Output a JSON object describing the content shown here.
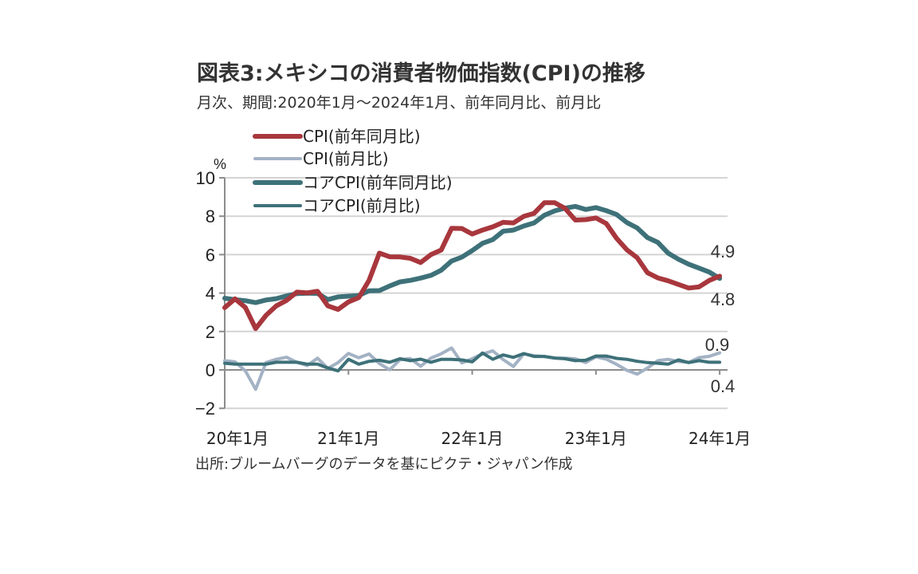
{
  "header": {
    "title": "図表3:メキシコの消費者物価指数(CPI)の推移",
    "subtitle": "月次、期間:2020年1月～2024年1月、前年同月比、前月比"
  },
  "footer": {
    "source": "出所:ブルームバーグのデータを基にピクテ・ジャパン作成"
  },
  "chart_data": {
    "type": "line",
    "title": "図表3:メキシコの消費者物価指数(CPI)の推移",
    "subtitle": "月次、期間:2020年1月～2024年1月、前年同月比、前月比",
    "ylabel": "%",
    "xlabel": "",
    "ylim": [
      -2,
      10
    ],
    "yticks": [
      10,
      8,
      6,
      4,
      2,
      0,
      -2
    ],
    "xtick_labels": [
      "20年1月",
      "21年1月",
      "22年1月",
      "23年1月",
      "24年1月"
    ],
    "xtick_months": [
      0,
      12,
      24,
      36,
      48
    ],
    "x_start": "2020-01",
    "x_end": "2024-01",
    "grid": true,
    "legend_position": "top-left",
    "series": [
      {
        "name": "CPI(前年同月比)",
        "color": "#a8373d",
        "width": "thick",
        "values": [
          3.24,
          3.7,
          3.25,
          2.15,
          2.84,
          3.33,
          3.62,
          4.05,
          4.01,
          4.09,
          3.33,
          3.15,
          3.54,
          3.76,
          4.67,
          6.08,
          5.89,
          5.88,
          5.81,
          5.59,
          6.0,
          6.24,
          7.37,
          7.36,
          7.07,
          7.28,
          7.45,
          7.68,
          7.65,
          7.99,
          8.15,
          8.7,
          8.7,
          8.41,
          7.8,
          7.82,
          7.91,
          7.62,
          6.85,
          6.25,
          5.84,
          5.06,
          4.79,
          4.64,
          4.45,
          4.26,
          4.32,
          4.66,
          4.88
        ]
      },
      {
        "name": "CPI(前月比)",
        "color": "#a3b2c4",
        "width": "thin",
        "values": [
          0.48,
          0.42,
          -0.05,
          -1.01,
          0.38,
          0.55,
          0.66,
          0.39,
          0.23,
          0.61,
          0.08,
          0.38,
          0.86,
          0.63,
          0.83,
          0.33,
          0.01,
          0.53,
          0.59,
          0.19,
          0.62,
          0.84,
          1.14,
          0.36,
          0.59,
          0.83,
          0.99,
          0.54,
          0.18,
          0.84,
          0.74,
          0.7,
          0.62,
          0.61,
          0.58,
          0.38,
          0.68,
          0.56,
          0.29,
          -0.02,
          -0.22,
          0.1,
          0.48,
          0.55,
          0.44,
          0.39,
          0.64,
          0.71,
          0.89
        ]
      },
      {
        "name": "コアCPI(前年同月比)",
        "color": "#3e7179",
        "width": "thick",
        "values": [
          3.73,
          3.66,
          3.6,
          3.5,
          3.64,
          3.71,
          3.85,
          3.97,
          3.99,
          3.98,
          3.66,
          3.8,
          3.84,
          3.87,
          4.12,
          4.13,
          4.37,
          4.58,
          4.66,
          4.78,
          4.92,
          5.19,
          5.67,
          5.87,
          6.21,
          6.59,
          6.78,
          7.22,
          7.28,
          7.49,
          7.65,
          8.05,
          8.28,
          8.42,
          8.51,
          8.35,
          8.45,
          8.29,
          8.09,
          7.67,
          7.39,
          6.89,
          6.64,
          6.08,
          5.76,
          5.5,
          5.3,
          5.09,
          4.76
        ]
      },
      {
        "name": "コアCPI(前月比)",
        "color": "#3e7179",
        "width": "thin",
        "values": [
          0.35,
          0.3,
          0.3,
          0.3,
          0.3,
          0.4,
          0.4,
          0.4,
          0.3,
          0.3,
          0.1,
          -0.05,
          0.55,
          0.3,
          0.45,
          0.5,
          0.4,
          0.58,
          0.48,
          0.56,
          0.4,
          0.55,
          0.55,
          0.52,
          0.42,
          0.88,
          0.55,
          0.78,
          0.65,
          0.85,
          0.7,
          0.7,
          0.62,
          0.58,
          0.48,
          0.5,
          0.72,
          0.72,
          0.6,
          0.55,
          0.45,
          0.38,
          0.35,
          0.3,
          0.52,
          0.38,
          0.48,
          0.4,
          0.4
        ]
      }
    ],
    "annotations": [
      {
        "text": "4.9",
        "series": "CPI(前年同月比)"
      },
      {
        "text": "4.8",
        "series": "コアCPI(前年同月比)"
      },
      {
        "text": "0.9",
        "series": "CPI(前月比)"
      },
      {
        "text": "0.4",
        "series": "コアCPI(前月比)"
      }
    ]
  }
}
